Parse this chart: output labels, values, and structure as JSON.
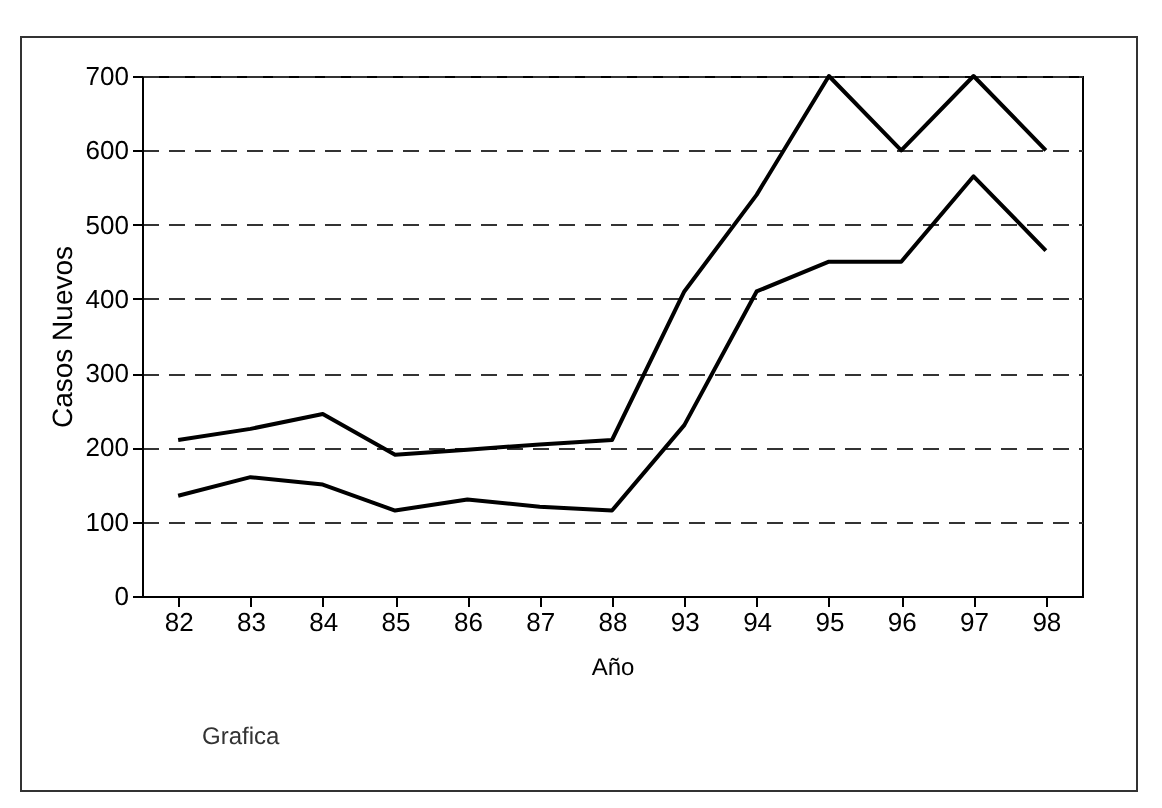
{
  "chart_data": {
    "type": "line",
    "xlabel": "Año",
    "ylabel": "Casos Nuevos",
    "annotations": [
      "Grafica"
    ],
    "categories": [
      "82",
      "83",
      "84",
      "85",
      "86",
      "87",
      "88",
      "93",
      "94",
      "95",
      "96",
      "97",
      "98"
    ],
    "series": [
      {
        "color": "#000000",
        "values": [
          210,
          225,
          245,
          190,
          197,
          204,
          210,
          410,
          540,
          700,
          600,
          700,
          600
        ]
      },
      {
        "color": "#000000",
        "values": [
          135,
          160,
          150,
          115,
          130,
          120,
          115,
          230,
          410,
          450,
          450,
          565,
          465
        ]
      }
    ],
    "ylim": [
      0,
      700
    ],
    "yticks": [
      0,
      100,
      200,
      300,
      400,
      500,
      600,
      700
    ],
    "grid": "y",
    "line_style": "solid",
    "legend": false
  }
}
